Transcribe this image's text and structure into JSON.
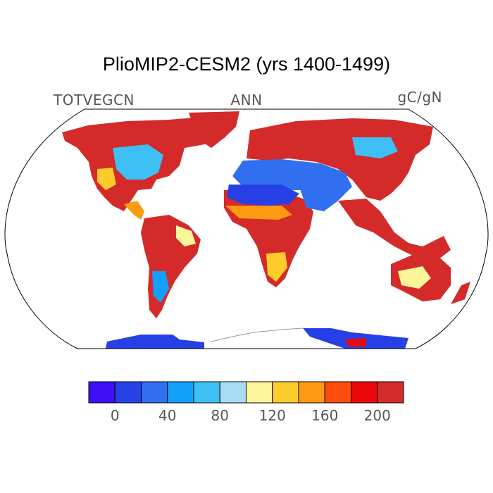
{
  "title": "PlioMIP2-CESM2 (yrs 1400-1499)",
  "left_label": "TOTVEGCN",
  "center_label": "ANN",
  "right_label": "gC/gN",
  "colorbar": {
    "colors": [
      "#3f10f5",
      "#2640e6",
      "#2f6ff0",
      "#12a0fb",
      "#3fc0f4",
      "#a8dcf2",
      "#fdf59c",
      "#fdcb2c",
      "#fd9a12",
      "#fe4c0d",
      "#ea0808",
      "#d42a2a"
    ],
    "tick_labels": [
      "0",
      "40",
      "80",
      "120",
      "160",
      "200"
    ]
  },
  "map_data": {
    "projection": "Robinson",
    "field": "TOTVEGCN",
    "season": "ANN",
    "units": "gC/gN",
    "value_range": [
      -20,
      220
    ],
    "interval": 20
  }
}
